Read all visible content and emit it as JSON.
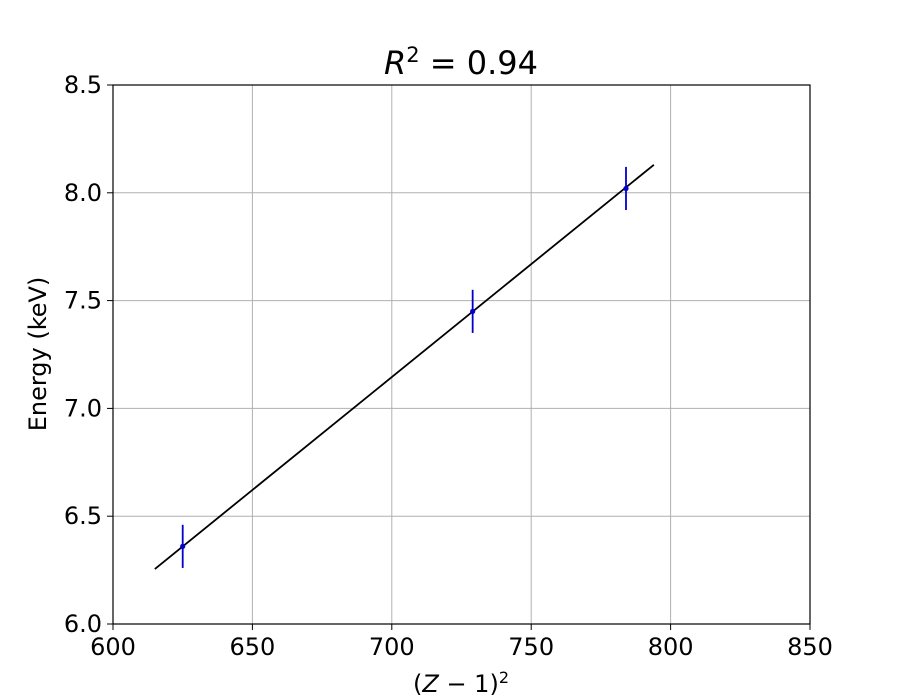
{
  "chart_data": {
    "type": "scatter",
    "title": {
      "symbol": "R",
      "exponent": "2",
      "rest": " = 0.94"
    },
    "xlabel": {
      "open": "(",
      "symbol": "Z",
      "rest": " − 1)",
      "exponent": "2"
    },
    "ylabel": "Energy (keV)",
    "xlim": [
      600,
      850
    ],
    "ylim": [
      6.0,
      8.5
    ],
    "x_ticks": [
      600,
      650,
      700,
      750,
      800,
      850
    ],
    "x_tick_labels": [
      "600",
      "650",
      "700",
      "750",
      "800",
      "850"
    ],
    "y_ticks": [
      6.0,
      6.5,
      7.0,
      7.5,
      8.0,
      8.5
    ],
    "y_tick_labels": [
      "6.0",
      "6.5",
      "7.0",
      "7.5",
      "8.0",
      "8.5"
    ],
    "grid": true,
    "points": {
      "x": [
        625,
        729,
        784
      ],
      "y": [
        6.36,
        7.45,
        8.02
      ],
      "yerr": [
        0.1,
        0.1,
        0.1
      ],
      "color": "#0000cc"
    },
    "fit_line": {
      "x": [
        615,
        794
      ],
      "y": [
        6.255,
        8.13
      ],
      "color": "#000000"
    }
  }
}
